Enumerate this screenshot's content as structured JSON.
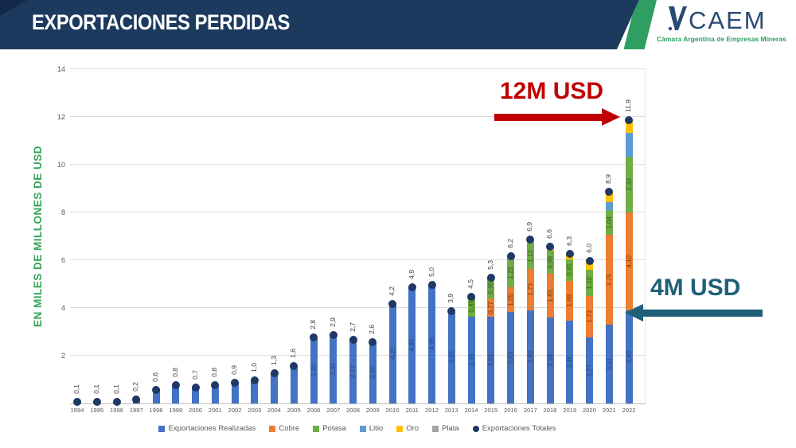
{
  "header": {
    "title": "EXPORTACIONES PERDIDAS",
    "logo_text": "CAEM",
    "logo_subtitle": "Cámara Argentina de Empresas Mineras",
    "colors": {
      "band": "#1C3A5E",
      "stripe_green": "#2E9E63",
      "logo_navy": "#2B4A73"
    }
  },
  "annotations": {
    "top": {
      "label": "12M USD",
      "color": "#C00000"
    },
    "side": {
      "label": "4M USD",
      "color": "#1F5F78"
    }
  },
  "chart_data": {
    "type": "bar",
    "stacked": true,
    "title": "",
    "xlabel": "",
    "ylabel": "EN MILES DE MILLONES DE USD",
    "ylim": [
      0,
      14
    ],
    "yticks": [
      2,
      4,
      6,
      8,
      10,
      12,
      14
    ],
    "grid": true,
    "legend_position": "bottom",
    "categories": [
      "1994",
      "1995",
      "1996",
      "1997",
      "1998",
      "1999",
      "2000",
      "2001",
      "2002",
      "2003",
      "2004",
      "2005",
      "2006",
      "2007",
      "2008",
      "2009",
      "2010",
      "2011",
      "2012",
      "2013",
      "2014",
      "2015",
      "2016",
      "2017",
      "2018",
      "2019",
      "2020",
      "2021",
      "2022"
    ],
    "totals": [
      0.1,
      0.1,
      0.1,
      0.2,
      0.6,
      0.8,
      0.7,
      0.8,
      0.9,
      1.0,
      1.3,
      1.6,
      2.8,
      2.9,
      2.7,
      2.6,
      4.2,
      4.9,
      5.0,
      3.9,
      4.5,
      5.3,
      6.2,
      6.9,
      6.6,
      6.3,
      6.0,
      8.9,
      11.9
    ],
    "totals_labels": [
      "0,1",
      "0,1",
      "0,1",
      "0,2",
      "0,6",
      "0,8",
      "0,7",
      "0,8",
      "0,9",
      "1,0",
      "1,3",
      "1,6",
      "2,8",
      "2,9",
      "2,7",
      "2,6",
      "4,2",
      "4,9",
      "5,0",
      "3,9",
      "4,5",
      "5,3",
      "6,2",
      "6,9",
      "6,6",
      "6,3",
      "6,0",
      "8,9",
      "11,9"
    ],
    "totals_series_name": "Exportaciones Totales",
    "totals_color": "#1F3864",
    "series": [
      {
        "name": "Exportaciones Realizadas",
        "color": "#4472C4",
        "label_color": "#2a4a80",
        "values": [
          0.1,
          0.1,
          0.1,
          0.2,
          0.6,
          0.8,
          0.7,
          0.8,
          0.9,
          1.0,
          1.3,
          1.6,
          2.8,
          2.9,
          2.7,
          2.6,
          4.2,
          4.9,
          5.0,
          3.9,
          3.65,
          3.63,
          3.83,
          3.9,
          3.59,
          3.46,
          2.77,
          3.31,
          3.9
        ],
        "labels": [
          null,
          null,
          null,
          null,
          null,
          null,
          null,
          null,
          null,
          null,
          null,
          null,
          "2,80",
          "2,90",
          "2,72",
          "2,60",
          "4,21",
          "4,90",
          "4,98",
          "3,85",
          "3,65",
          "3,63",
          "3,83",
          "3,90",
          "3,59",
          "3,46",
          "2,77",
          "3,31",
          "3,90"
        ]
      },
      {
        "name": "Cobre",
        "color": "#ED7D31",
        "label_color": "#833C00",
        "values": [
          0,
          0,
          0,
          0,
          0,
          0,
          0,
          0,
          0,
          0,
          0,
          0,
          0,
          0,
          0,
          0,
          0,
          0,
          0,
          0,
          0,
          0.77,
          1.05,
          1.73,
          1.83,
          1.68,
          1.73,
          3.75,
          4.1
        ],
        "labels": [
          null,
          null,
          null,
          null,
          null,
          null,
          null,
          null,
          null,
          null,
          null,
          null,
          null,
          null,
          null,
          null,
          null,
          null,
          null,
          null,
          null,
          "0,77",
          "1,05",
          "1,73",
          "1,83",
          "1,68",
          "1,73",
          "3,75",
          "4,10"
        ]
      },
      {
        "name": "Potasa",
        "color": "#70AD47",
        "label_color": "#2E5A1C",
        "values": [
          0,
          0,
          0,
          0,
          0,
          0,
          0,
          0,
          0,
          0,
          0,
          0,
          0,
          0,
          0,
          0,
          0,
          0,
          0,
          0,
          0.85,
          0.9,
          1.22,
          1.12,
          0.98,
          0.91,
          1.1,
          1.04,
          2.33
        ],
        "labels": [
          null,
          null,
          null,
          null,
          null,
          null,
          null,
          null,
          null,
          null,
          null,
          null,
          null,
          null,
          null,
          null,
          null,
          null,
          null,
          null,
          "0,85",
          "0,90",
          "1,22",
          "1,12",
          "0,98",
          "0,91",
          "1,10",
          "1,04",
          "2,33"
        ]
      },
      {
        "name": "Litio",
        "color": "#5B9BD5",
        "label_color": null,
        "values": [
          0,
          0,
          0,
          0,
          0,
          0,
          0,
          0,
          0,
          0,
          0,
          0,
          0,
          0,
          0,
          0,
          0,
          0,
          0,
          0,
          0,
          0,
          0,
          0,
          0,
          0,
          0,
          0.35,
          1.02
        ],
        "labels": null
      },
      {
        "name": "Oro",
        "color": "#FFC000",
        "label_color": null,
        "values": [
          0,
          0,
          0,
          0,
          0,
          0,
          0,
          0,
          0,
          0,
          0,
          0,
          0,
          0,
          0,
          0,
          0,
          0,
          0,
          0,
          0,
          0,
          0.1,
          0.15,
          0.2,
          0.25,
          0.4,
          0.45,
          0.55
        ],
        "labels": null
      },
      {
        "name": "Plata",
        "color": "#A5A5A5",
        "label_color": null,
        "values": [
          0,
          0,
          0,
          0,
          0,
          0,
          0,
          0,
          0,
          0,
          0,
          0,
          0,
          0,
          0,
          0,
          0,
          0,
          0,
          0,
          0,
          0,
          0,
          0,
          0,
          0,
          0,
          0,
          0
        ],
        "labels": null
      }
    ],
    "legend": [
      {
        "label": "Exportaciones Realizadas",
        "color": "#4472C4",
        "shape": "square"
      },
      {
        "label": "Cobre",
        "color": "#ED7D31",
        "shape": "square"
      },
      {
        "label": "Potasa",
        "color": "#70AD47",
        "shape": "square"
      },
      {
        "label": "Litio",
        "color": "#5B9BD5",
        "shape": "square"
      },
      {
        "label": "Oro",
        "color": "#FFC000",
        "shape": "square"
      },
      {
        "label": "Plata",
        "color": "#A5A5A5",
        "shape": "square"
      },
      {
        "label": "Exportaciones Totales",
        "color": "#1F3864",
        "shape": "circle"
      }
    ]
  }
}
